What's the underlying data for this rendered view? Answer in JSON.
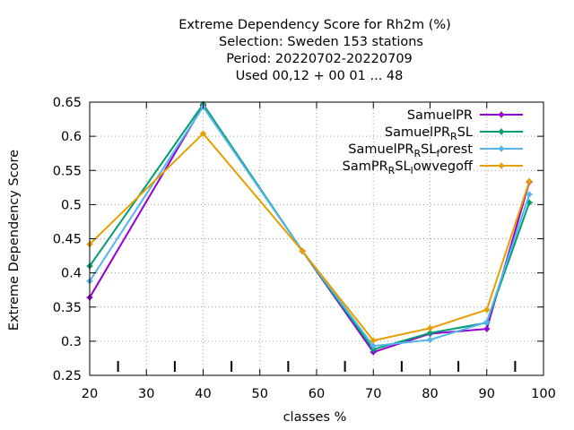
{
  "title_lines": [
    "Extreme Dependency Score  for Rh2m (%)",
    "Selection: Sweden    153 stations",
    "Period: 20220702-20220709",
    "Used  00,12  + 00 01 ... 48"
  ],
  "chart_data": {
    "type": "line",
    "title": "Extreme Dependency Score  for Rh2m (%)",
    "xlabel": "classes %",
    "ylabel": "Extreme Dependency Score",
    "xlim": [
      20,
      100
    ],
    "ylim": [
      0.25,
      0.65
    ],
    "xticks": [
      20,
      30,
      40,
      50,
      60,
      70,
      80,
      90,
      100
    ],
    "xtick_labels": [
      "20",
      "30",
      "40",
      "50",
      "60",
      "70",
      "80",
      "90",
      "100"
    ],
    "yticks": [
      0.25,
      0.3,
      0.35,
      0.4,
      0.45,
      0.5,
      0.55,
      0.6,
      0.65
    ],
    "ytick_labels": [
      "0.25",
      "0.3",
      "0.35",
      "0.4",
      "0.45",
      "0.5",
      "0.55",
      "0.6",
      "0.65"
    ],
    "grid": true,
    "legend_position": "top-right",
    "x": [
      20,
      40,
      57.5,
      70,
      80,
      90,
      97.5
    ],
    "class_markers": [
      25,
      35,
      45,
      55,
      65,
      75,
      85,
      95
    ],
    "series": [
      {
        "name": "SamuelPR",
        "legend_main": "SamuelPR",
        "legend_sub": "",
        "legend_tail": "",
        "color": "#9400d3",
        "values": [
          0.364,
          0.645,
          0.432,
          0.284,
          0.311,
          0.318,
          0.533
        ]
      },
      {
        "name": "SamuelPR_RSL",
        "legend_main": "SamuelPR",
        "legend_sub": "R",
        "legend_tail": "SL",
        "color": "#009e73",
        "values": [
          0.41,
          0.647,
          0.432,
          0.288,
          0.312,
          0.327,
          0.503
        ]
      },
      {
        "name": "SamuelPR_RSL_forest",
        "legend_main": "SamuelPR",
        "legend_sub": "R",
        "legend_tail": "SL",
        "legend_sub2": "f",
        "legend_tail2": "orest",
        "color": "#56b4e9",
        "values": [
          0.388,
          0.643,
          0.432,
          0.293,
          0.302,
          0.328,
          0.515
        ]
      },
      {
        "name": "SamPR_RSL_lowvegoff",
        "legend_main": "SamPR",
        "legend_sub": "R",
        "legend_tail": "SL",
        "legend_sub2": "l",
        "legend_tail2": "owvegoff",
        "color": "#e69f00",
        "values": [
          0.442,
          0.604,
          0.432,
          0.301,
          0.319,
          0.346,
          0.534
        ]
      }
    ]
  }
}
